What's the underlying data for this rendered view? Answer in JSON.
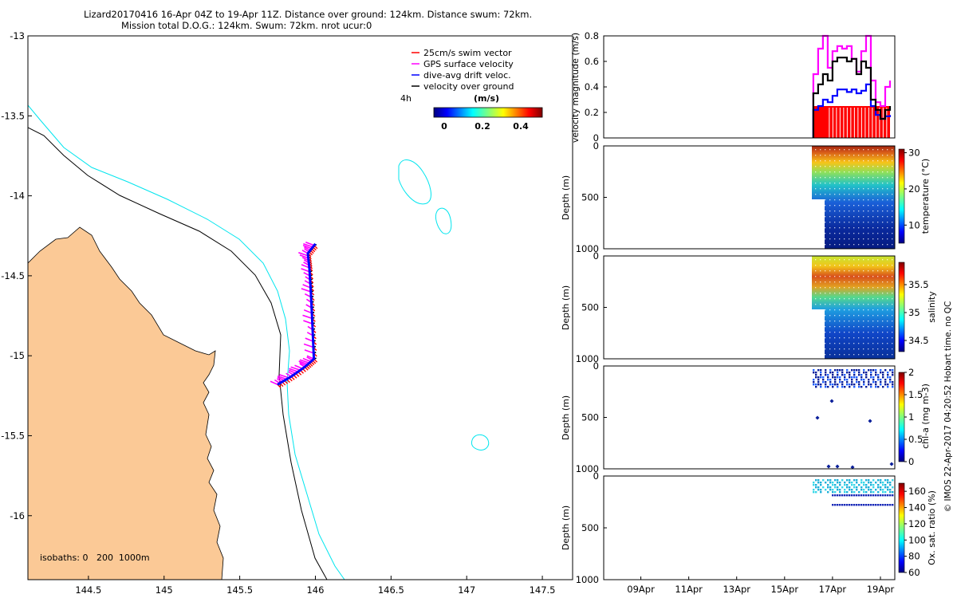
{
  "header": {
    "line1": "Lizard20170416 16-Apr 04Z to 19-Apr 11Z. Distance over ground: 124km. Distance swum: 72km.",
    "line2": "Mission total D.O.G.: 124km. Swum: 72km. nrot ucur:0"
  },
  "colors": {
    "land": "#fbc996",
    "isobath_200": "#000000",
    "isobath_1000": "#00e5ee",
    "swim_vector": "#ff0000",
    "gps_velocity": "#ff00ff",
    "drift_velocity": "#0000ff",
    "ground_velocity": "#000000"
  },
  "chart_data": [
    {
      "type": "map",
      "panel": "track-map",
      "x_ticks": [
        "144.5",
        "145",
        "145.5",
        "146",
        "146.5",
        "147",
        "147.5"
      ],
      "y_ticks": [
        "-13",
        "-13.5",
        "-14",
        "-14.5",
        "-15",
        "-15.5",
        "-16"
      ],
      "xlim": [
        144.1,
        147.7
      ],
      "ylim": [
        -16.4,
        -13.0
      ],
      "legend": [
        {
          "label": "25cm/s swim vector",
          "color": "#ff0000"
        },
        {
          "label": "GPS surface velocity",
          "color": "#ff00ff"
        },
        {
          "label": "dive-avg drift veloc.",
          "color": "#0000ff"
        },
        {
          "label": "velocity over ground",
          "color": "#000000"
        }
      ],
      "legend_interval": "4h",
      "colorbar": {
        "title": "(m/s)",
        "ticks": [
          "0",
          "0.2",
          "0.4"
        ]
      },
      "isobath_note": "isobaths: 0   200  1000m",
      "glider_track": [
        {
          "lon": 145.75,
          "lat": -15.18
        },
        {
          "lon": 145.84,
          "lat": -15.13
        },
        {
          "lon": 145.93,
          "lat": -15.07
        },
        {
          "lon": 145.99,
          "lat": -15.02
        },
        {
          "lon": 145.98,
          "lat": -14.8
        },
        {
          "lon": 145.97,
          "lat": -14.6
        },
        {
          "lon": 145.96,
          "lat": -14.45
        },
        {
          "lon": 145.95,
          "lat": -14.36
        },
        {
          "lon": 146.0,
          "lat": -14.3
        }
      ]
    },
    {
      "type": "line",
      "panel": "velocity-magnitude",
      "ylabel": "velocity magnitude (m/s)",
      "ylim": [
        0,
        0.8
      ],
      "y_ticks": [
        "0",
        "0.2",
        "0.4",
        "0.6",
        "0.8"
      ],
      "x_ticks": [
        "09Apr",
        "11Apr",
        "13Apr",
        "15Apr",
        "17Apr",
        "19Apr"
      ],
      "time_days": [
        16.2,
        16.4,
        16.6,
        16.8,
        17.0,
        17.2,
        17.4,
        17.6,
        17.8,
        18.0,
        18.2,
        18.4,
        18.6,
        18.8,
        19.0,
        19.2,
        19.4
      ],
      "series": [
        {
          "name": "swim",
          "color": "#ff0000",
          "values": [
            0.25,
            0.25,
            0.25,
            0.25,
            0.25,
            0.25,
            0.25,
            0.25,
            0.25,
            0.25,
            0.25,
            0.25,
            0.25,
            0.25,
            0.25,
            0.25,
            0.25
          ]
        },
        {
          "name": "gps",
          "color": "#ff00ff",
          "values": [
            0.5,
            0.7,
            0.8,
            0.55,
            0.68,
            0.72,
            0.7,
            0.72,
            0.62,
            0.52,
            0.68,
            0.8,
            0.45,
            0.28,
            0.25,
            0.4,
            0.45
          ]
        },
        {
          "name": "drift",
          "color": "#0000ff",
          "values": [
            0.22,
            0.25,
            0.3,
            0.28,
            0.33,
            0.38,
            0.38,
            0.36,
            0.38,
            0.35,
            0.37,
            0.42,
            0.25,
            0.18,
            0.15,
            0.17,
            0.18
          ]
        },
        {
          "name": "ground",
          "color": "#000000",
          "values": [
            0.35,
            0.42,
            0.5,
            0.45,
            0.6,
            0.63,
            0.63,
            0.6,
            0.62,
            0.5,
            0.6,
            0.55,
            0.3,
            0.22,
            0.15,
            0.22,
            0.25
          ]
        }
      ]
    },
    {
      "type": "heatmap",
      "panel": "temperature",
      "ylabel": "Depth (m)",
      "ylim": [
        1000,
        0
      ],
      "y_ticks": [
        "0",
        "500",
        "1000"
      ],
      "colorbar_label": "temperature (°C)",
      "colorbar_ticks": [
        "30",
        "20",
        "10"
      ],
      "range": [
        5,
        31
      ],
      "surface_value": 29,
      "bottom_value": 5
    },
    {
      "type": "heatmap",
      "panel": "salinity",
      "ylabel": "Depth (m)",
      "ylim": [
        1000,
        0
      ],
      "y_ticks": [
        "0",
        "500",
        "1000"
      ],
      "colorbar_label": "salinity",
      "colorbar_ticks": [
        "35.5",
        "35",
        "34.5"
      ],
      "range": [
        34.3,
        35.9
      ]
    },
    {
      "type": "scatter",
      "panel": "chl-a",
      "ylabel": "Depth (m)",
      "ylim": [
        1000,
        0
      ],
      "y_ticks": [
        "0",
        "500",
        "1000"
      ],
      "colorbar_label": "chl-a (mg m-3)",
      "colorbar_ticks": [
        "2",
        "1.5",
        "1",
        "0.5",
        "0"
      ],
      "range": [
        0,
        2
      ]
    },
    {
      "type": "scatter",
      "panel": "oxygen",
      "ylabel": "Depth (m)",
      "ylim": [
        1000,
        0
      ],
      "y_ticks": [
        "0",
        "500",
        "1000"
      ],
      "colorbar_label": "Ox. sat. ratio (%)",
      "colorbar_ticks": [
        "160",
        "140",
        "120",
        "100",
        "80",
        "60"
      ],
      "range": [
        60,
        170
      ]
    }
  ],
  "side_note": "© IMOS 22-Apr-2017 04:20:52 Hobart time. no QC"
}
